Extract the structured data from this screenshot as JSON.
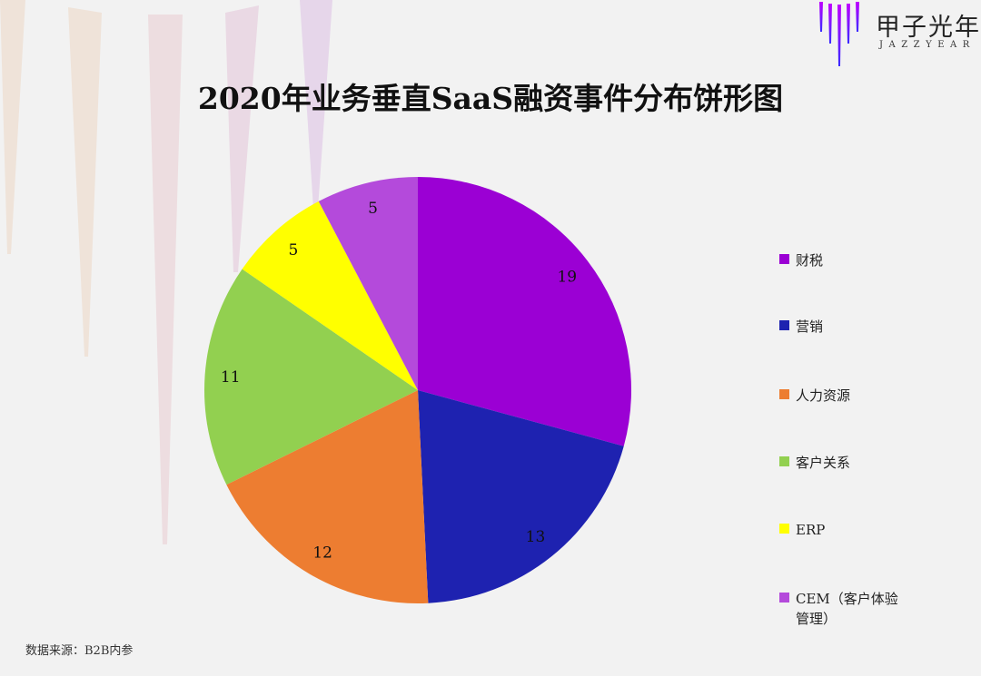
{
  "logo": {
    "cn": "甲子光年",
    "en": "JAZZYEAR"
  },
  "source": "数据来源：B2B内参",
  "chart_data": {
    "type": "pie",
    "title": "2020年业务垂直SaaS融资事件分布饼形图",
    "start": "top",
    "direction": "clockwise",
    "legend_position": "right",
    "categories": [
      "财税",
      "营销",
      "人力资源",
      "客户关系",
      "ERP",
      "CEM（客户体验管理）"
    ],
    "values": [
      19,
      13,
      12,
      11,
      5,
      5
    ],
    "colors": [
      "#9b00d4",
      "#1e22b0",
      "#ed7d31",
      "#92d050",
      "#ffff00",
      "#b44adb"
    ]
  }
}
